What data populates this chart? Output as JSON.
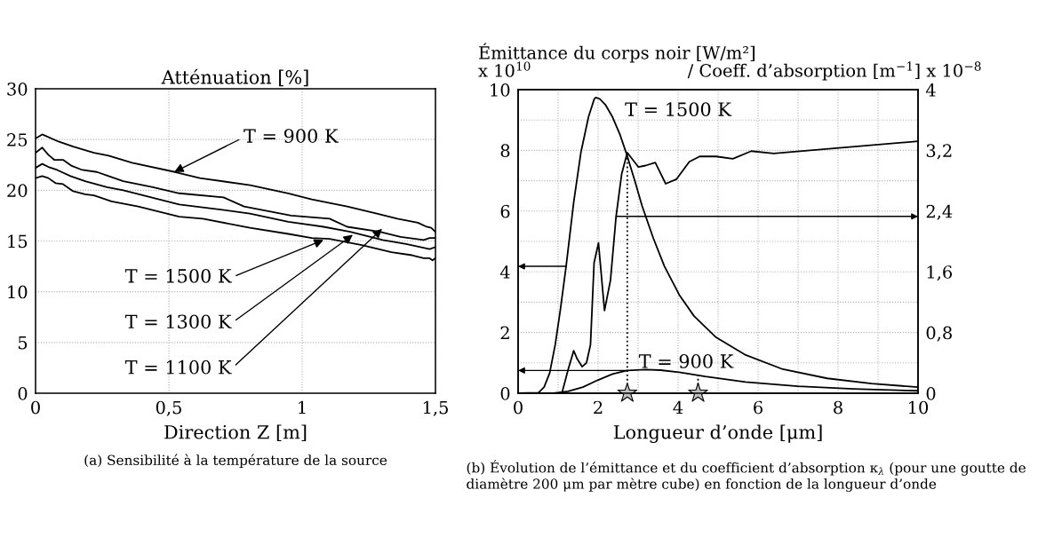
{
  "chart_data": [
    {
      "type": "line",
      "title": "Atténuation [%]",
      "xlabel": "Direction Z [m]",
      "xlim": [
        0,
        1.5
      ],
      "xticks": [
        0,
        {
          "value": 0.5,
          "label": "0,5"
        },
        1,
        {
          "value": 1.5,
          "label": "1,5"
        }
      ],
      "ylim": [
        0,
        30
      ],
      "yticks": [
        0,
        5,
        10,
        15,
        20,
        25,
        30
      ],
      "grid": true,
      "series": [
        {
          "color": "#000000",
          "x": [
            0,
            0.025,
            0.086,
            0.141,
            0.219,
            0.274,
            0.362,
            0.523,
            0.616,
            0.805,
            0.948,
            1.036,
            1.169,
            1.28,
            1.357,
            1.434,
            1.467,
            1.484,
            1.5
          ],
          "values": [
            25.1,
            25.5,
            24.8,
            24.3,
            23.7,
            23.4,
            22.7,
            21.8,
            21.2,
            20.5,
            19.7,
            19.1,
            18.4,
            17.7,
            17.2,
            16.8,
            16.4,
            16.3,
            15.9
          ]
        },
        {
          "color": "#000000",
          "x": [
            0,
            0.025,
            0.048,
            0.07,
            0.103,
            0.136,
            0.175,
            0.23,
            0.274,
            0.329,
            0.44,
            0.539,
            0.705,
            0.782,
            0.959,
            1.103,
            1.169,
            1.291,
            1.369,
            1.456,
            1.478,
            1.5
          ],
          "values": [
            23.7,
            24.2,
            23.5,
            23.0,
            23.0,
            22.4,
            22.0,
            21.8,
            21.4,
            20.9,
            20.3,
            19.7,
            19.3,
            18.4,
            17.5,
            17.2,
            16.4,
            15.9,
            15.4,
            15.1,
            15.3,
            15.3
          ]
        },
        {
          "color": "#000000",
          "x": [
            0,
            0.025,
            0.048,
            0.081,
            0.131,
            0.186,
            0.268,
            0.329,
            0.539,
            0.694,
            0.804,
            0.948,
            1.08,
            1.18,
            1.302,
            1.39,
            1.478,
            1.5
          ],
          "values": [
            22.2,
            22.6,
            22.3,
            22.0,
            21.4,
            20.9,
            20.3,
            20.0,
            18.6,
            18.1,
            17.7,
            16.9,
            16.4,
            15.9,
            15.1,
            14.7,
            14.2,
            14.4
          ]
        },
        {
          "color": "#000000",
          "x": [
            0,
            0.025,
            0.048,
            0.075,
            0.103,
            0.141,
            0.186,
            0.219,
            0.285,
            0.385,
            0.462,
            0.539,
            0.627,
            0.804,
            0.948,
            1.036,
            1.103,
            1.224,
            1.335,
            1.412,
            1.456,
            1.478,
            1.489,
            1.5
          ],
          "values": [
            21.2,
            21.4,
            21.2,
            20.7,
            20.6,
            19.9,
            19.6,
            19.5,
            18.9,
            18.4,
            17.9,
            17.4,
            17.2,
            16.3,
            15.7,
            15.3,
            15.2,
            14.6,
            13.9,
            13.6,
            13.3,
            13.3,
            13.1,
            13.3
          ]
        }
      ],
      "annotations": [
        {
          "text": "T = 900 K",
          "x": 0.52,
          "y": 21.8
        },
        {
          "text": "T = 1500 K",
          "x": 1.08,
          "y": 15.1
        },
        {
          "text": "T = 1300 K",
          "x": 1.19,
          "y": 15.6
        },
        {
          "text": "T = 1100 K",
          "x": 1.3,
          "y": 16.2
        },
        "(a) Sensibilité à la température de la source"
      ]
    },
    {
      "type": "line",
      "xlabel": "Longueur d’onde [μm]",
      "ylabel": "Émittance du corps noir [W/m²]\nx 10$^{10}$",
      "y2label": "/ Coeff. d’absorption [m$^{−1}$] x 10$^{−8}$",
      "xlim": [
        0,
        10
      ],
      "xticks": [
        0,
        {
          "value": 1,
          "label": null
        },
        2,
        {
          "value": 3,
          "label": null
        },
        4,
        {
          "value": 5,
          "label": null
        },
        6,
        {
          "value": 7,
          "label": null
        },
        8,
        {
          "value": 9,
          "label": null
        },
        10
      ],
      "ylim": [
        0,
        10
      ],
      "yticks": [
        0,
        {
          "value": 1,
          "label": null
        },
        2,
        {
          "value": 3,
          "label": null
        },
        4,
        {
          "value": 5,
          "label": null
        },
        6,
        {
          "value": 7,
          "label": null
        },
        8,
        {
          "value": 9,
          "label": null
        },
        10
      ],
      "y2lim": [
        0,
        4
      ],
      "y2ticks": [
        0,
        {
          "value": 0.8,
          "label": "0,8"
        },
        {
          "value": 1.6,
          "label": "1,6"
        },
        {
          "value": 2.4,
          "label": "2,4"
        },
        {
          "value": 3.2,
          "label": "3,2"
        },
        4
      ],
      "grid": true,
      "series": [
        {
          "color": "#000000",
          "x": [
            0,
            0.51,
            0.65,
            0.79,
            0.93,
            1.06,
            1.2,
            1.39,
            1.57,
            1.76,
            1.9,
            1.94,
            2.04,
            2.18,
            2.36,
            2.55,
            2.73,
            2.92,
            3.1,
            3.38,
            3.66,
            4.03,
            4.4,
            4.95,
            5.69,
            6.62,
            7.73,
            8.84,
            10
          ],
          "values": [
            0,
            0.02,
            0.2,
            0.67,
            1.61,
            2.78,
            4.18,
            6.29,
            7.93,
            9.1,
            9.68,
            9.74,
            9.7,
            9.51,
            9.1,
            8.51,
            7.81,
            6.99,
            6.17,
            5.11,
            4.18,
            3.24,
            2.54,
            1.84,
            1.26,
            0.79,
            0.49,
            0.32,
            0.2
          ]
        },
        {
          "color": "#000000",
          "x": [
            0,
            0.88,
            1.25,
            1.62,
            1.99,
            2.36,
            2.73,
            3.19,
            3.56,
            4.03,
            4.68,
            5.69,
            6.99,
            8.38,
            10
          ],
          "values": [
            0,
            0,
            0.06,
            0.2,
            0.43,
            0.63,
            0.75,
            0.78,
            0.76,
            0.69,
            0.55,
            0.37,
            0.23,
            0.14,
            0.08
          ]
        },
        {
          "color": "#000000",
          "axis": "y2",
          "x": [
            1.11,
            1.25,
            1.39,
            1.48,
            1.6,
            1.71,
            1.81,
            1.9,
            2.01,
            2.16,
            2.31,
            2.45,
            2.59,
            2.73,
            3.01,
            3.19,
            3.43,
            3.69,
            3.96,
            4.28,
            4.54,
            4.95,
            5.37,
            5.83,
            6.39,
            10
          ],
          "values": [
            0.03,
            0.31,
            0.56,
            0.45,
            0.35,
            0.4,
            0.64,
            1.72,
            1.98,
            1.09,
            1.49,
            2.33,
            2.89,
            3.17,
            2.98,
            3.0,
            3.04,
            2.76,
            2.82,
            3.05,
            3.12,
            3.12,
            3.09,
            3.19,
            3.16,
            3.32
          ]
        },
        {
          "color": "#000000",
          "line_style": "dotted",
          "x": [
            2.73,
            2.73
          ],
          "values": [
            0,
            7.9
          ]
        },
        {
          "color": "#000000",
          "line_style": "dotted",
          "x": [
            4.5,
            4.5
          ],
          "values": [
            0,
            0.6
          ]
        },
        {
          "type": "scatter",
          "marker": "star",
          "color": "#c0c0c0",
          "x": [
            2.73,
            4.5
          ],
          "values": [
            0,
            0
          ]
        }
      ],
      "annotations": [
        "T = 1500 K",
        "T = 900 K",
        "(b) Évolution de l’émittance et du coefficient d’absorption κ$_{λ}$ (pour une goutte de diamètre 200 μm par mètre cube) en fonction de la longueur d’onde"
      ]
    }
  ]
}
